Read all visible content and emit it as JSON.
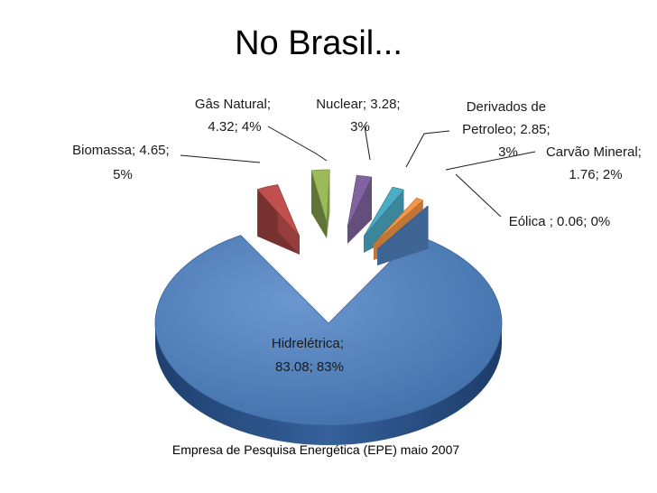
{
  "chart_data": {
    "type": "pie",
    "title": "No Brasil...",
    "source": "Empresa de Pesquisa Energética (EPE) maio 2007",
    "slices": [
      {
        "label": "Hidrelétrica",
        "value": 83.08,
        "percent": "83%",
        "color": "#4f81bd"
      },
      {
        "label": "Biomassa",
        "value": 4.65,
        "percent": "5%",
        "color": "#c0504d"
      },
      {
        "label": "Gâs Natural",
        "value": 4.32,
        "percent": "4%",
        "color": "#9bbb59"
      },
      {
        "label": "Nuclear",
        "value": 3.28,
        "percent": "3%",
        "color": "#8064a2"
      },
      {
        "label": "Derivados de Petroleo",
        "value": 2.85,
        "percent": "3%",
        "color": "#4bacc6"
      },
      {
        "label": "Carvão Mineral",
        "value": 1.76,
        "percent": "2%",
        "color": "#f79646"
      },
      {
        "label": "Eólica",
        "value": 0.06,
        "percent": "0%",
        "color": "#4f81bd"
      }
    ],
    "labels": {
      "hidreletrica": [
        "Hidrelétrica;",
        "83.08; 83%"
      ],
      "biomassa": [
        "Biomassa; 4.65;",
        "5%"
      ],
      "gas": [
        "Gâs Natural;",
        "4.32; 4%"
      ],
      "nuclear": [
        "Nuclear; 3.28;",
        "3%"
      ],
      "derivados": [
        "Derivados de",
        "Petroleo; 2.85;",
        "3%"
      ],
      "carvao": [
        "Carvão Mineral;",
        "1.76; 2%"
      ],
      "eolica": [
        "Eólica ; 0.06; 0%"
      ]
    }
  }
}
